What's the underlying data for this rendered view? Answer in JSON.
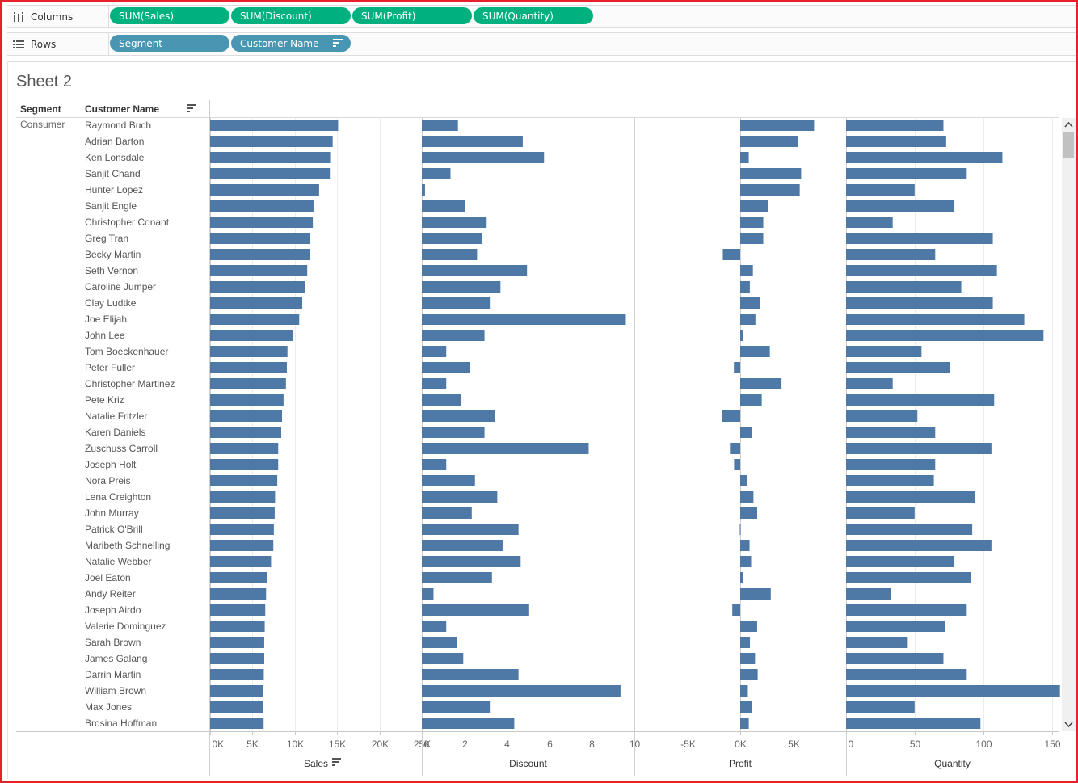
{
  "shelves": {
    "columns": {
      "label": "Columns",
      "icon": "columns-icon",
      "pills": [
        "SUM(Sales)",
        "SUM(Discount)",
        "SUM(Profit)",
        "SUM(Quantity)"
      ],
      "pill_color": "#00b180"
    },
    "rows": {
      "label": "Rows",
      "icon": "rows-icon",
      "pills": [
        "Segment",
        "Customer Name"
      ],
      "pill_color": "#4996b2"
    }
  },
  "sheet": {
    "title": "Sheet 2",
    "headers": {
      "segment": "Segment",
      "customer": "Customer Name"
    }
  },
  "chart_data": {
    "type": "bar",
    "orientation": "horizontal",
    "bar_color": "#4e79a7",
    "segment": "Consumer",
    "categories": [
      "Raymond Buch",
      "Adrian Barton",
      "Ken Lonsdale",
      "Sanjit Chand",
      "Hunter Lopez",
      "Sanjit Engle",
      "Christopher Conant",
      "Greg Tran",
      "Becky Martin",
      "Seth Vernon",
      "Caroline Jumper",
      "Clay Ludtke",
      "Joe Elijah",
      "John Lee",
      "Tom Boeckenhauer",
      "Peter Fuller",
      "Christopher Martinez",
      "Pete Kriz",
      "Natalie Fritzler",
      "Karen Daniels",
      "Zuschuss Carroll",
      "Joseph Holt",
      "Nora Preis",
      "Lena Creighton",
      "John Murray",
      "Patrick O'Brill",
      "Maribeth Schnelling",
      "Natalie Webber",
      "Joel Eaton",
      "Andy Reiter",
      "Joseph Airdo",
      "Valerie Dominguez",
      "Sarah Brown",
      "James Galang",
      "Darrin Martin",
      "William Brown",
      "Max Jones",
      "Brosina Hoffman"
    ],
    "series": [
      {
        "name": "Sales",
        "axis_title": "Sales",
        "sorted": true,
        "xlim": [
          0,
          25000
        ],
        "ticks": [
          0,
          5000,
          10000,
          15000,
          20000,
          25000
        ],
        "tick_labels": [
          "0K",
          "5K",
          "10K",
          "15K",
          "20K",
          "25K"
        ],
        "values": [
          15117,
          14473,
          14175,
          14142,
          12873,
          12209,
          12129,
          11820,
          11790,
          11470,
          11165,
          10880,
          10523,
          9799,
          9134,
          9063,
          8955,
          8673,
          8493,
          8402,
          8040,
          8038,
          7931,
          7669,
          7627,
          7526,
          7464,
          7195,
          6743,
          6608,
          6510,
          6446,
          6390,
          6396,
          6339,
          6289,
          6286,
          6319
        ]
      },
      {
        "name": "Discount",
        "axis_title": "Discount",
        "xlim": [
          0,
          10
        ],
        "ticks": [
          0,
          2,
          4,
          6,
          8,
          10
        ],
        "tick_labels": [
          "0",
          "2",
          "4",
          "6",
          "8",
          "10"
        ],
        "values": [
          1.7,
          4.75,
          5.75,
          1.35,
          0.15,
          2.05,
          3.05,
          2.85,
          2.6,
          4.95,
          3.7,
          3.2,
          9.6,
          2.95,
          1.15,
          2.25,
          1.15,
          1.85,
          3.45,
          2.95,
          7.85,
          1.15,
          2.5,
          3.55,
          2.35,
          4.55,
          3.8,
          4.65,
          3.3,
          0.55,
          5.05,
          1.15,
          1.65,
          1.95,
          4.55,
          9.35,
          3.2,
          4.35
        ]
      },
      {
        "name": "Profit",
        "axis_title": "Profit",
        "xlim": [
          -10000,
          10000
        ],
        "ticks": [
          -5000,
          0,
          5000
        ],
        "tick_labels": [
          "-5K",
          "0K",
          "5K"
        ],
        "values": [
          6976,
          5444,
          807,
          5757,
          5623,
          2650,
          2178,
          2175,
          -1645,
          1199,
          910,
          1889,
          1438,
          265,
          2798,
          -596,
          3900,
          2035,
          -1706,
          1086,
          -970,
          -580,
          655,
          1250,
          1603,
          -40,
          880,
          1030,
          298,
          2885,
          -750,
          1600,
          920,
          1400,
          1650,
          720,
          1100,
          810
        ]
      },
      {
        "name": "Quantity",
        "axis_title": "Quantity",
        "xlim": [
          0,
          155
        ],
        "ticks": [
          0,
          50,
          100,
          150
        ],
        "tick_labels": [
          "0",
          "50",
          "100",
          "150"
        ],
        "values": [
          71,
          73,
          114,
          88,
          50,
          79,
          34,
          107,
          65,
          110,
          84,
          107,
          130,
          144,
          55,
          76,
          34,
          108,
          52,
          65,
          106,
          65,
          64,
          94,
          50,
          92,
          106,
          79,
          91,
          33,
          88,
          72,
          45,
          71,
          88,
          156,
          50,
          98
        ]
      }
    ]
  }
}
